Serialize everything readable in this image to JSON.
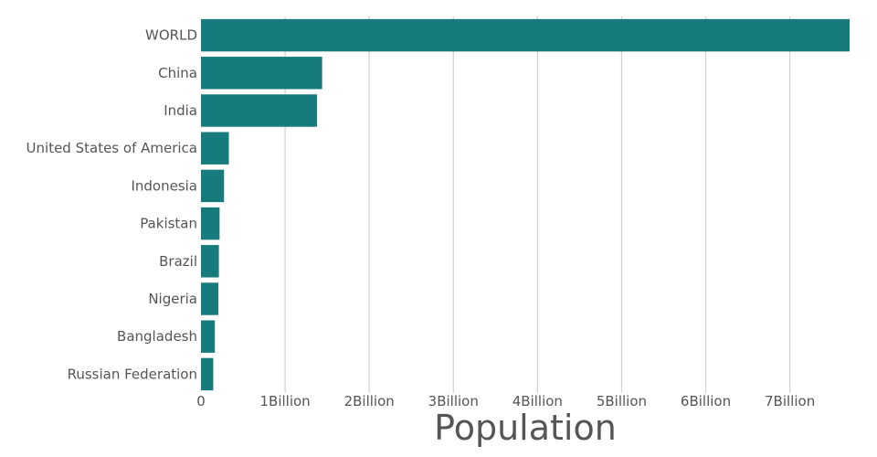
{
  "chart_data": {
    "type": "bar",
    "orientation": "horizontal",
    "categories": [
      "WORLD",
      "China",
      "India",
      "United States of America",
      "Indonesia",
      "Pakistan",
      "Brazil",
      "Nigeria",
      "Bangladesh",
      "Russian Federation"
    ],
    "values": [
      7710000000,
      1440000000,
      1380000000,
      331000000,
      274000000,
      221000000,
      213000000,
      206000000,
      165000000,
      146000000
    ],
    "xlabel": "Population",
    "ylabel": "",
    "xlim": [
      0,
      7710000000
    ],
    "x_ticks": [
      0,
      1000000000,
      2000000000,
      3000000000,
      4000000000,
      5000000000,
      6000000000,
      7000000000
    ],
    "x_tick_labels": [
      "0",
      "1Billion",
      "2Billion",
      "3Billion",
      "4Billion",
      "5Billion",
      "6Billion",
      "7Billion"
    ],
    "grid": "vertical",
    "bar_color": "#177b7e",
    "text_color": "#555555",
    "grid_color": "#d0d0d0"
  }
}
